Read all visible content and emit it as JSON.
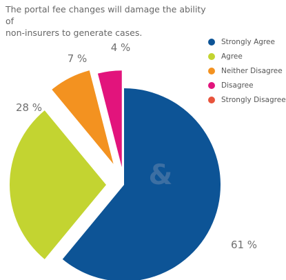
{
  "title_lines": [
    "The portal fee changes will damage the ability of",
    "non-insurers to generate cases."
  ],
  "colors": {
    "strongly_agree": "#0d5496",
    "agree": "#c3d431",
    "neither": "#f39220",
    "disagree": "#e2147c",
    "strongly_disagree": "#e8543c",
    "label_text": "#707070",
    "watermark": "#3c6fa3"
  },
  "watermark": "&",
  "chart_data": {
    "type": "pie",
    "title": "The portal fee changes will damage the ability of non-insurers to generate cases.",
    "legend_position": "top-right",
    "exploded": true,
    "categories": [
      "Strongly Agree",
      "Agree",
      "Neither Disagree",
      "Disagree",
      "Strongly Disagree"
    ],
    "values": [
      61,
      28,
      7,
      4,
      0
    ],
    "value_labels": [
      "61 %",
      "28 %",
      "7 %",
      "4 %",
      ""
    ]
  }
}
